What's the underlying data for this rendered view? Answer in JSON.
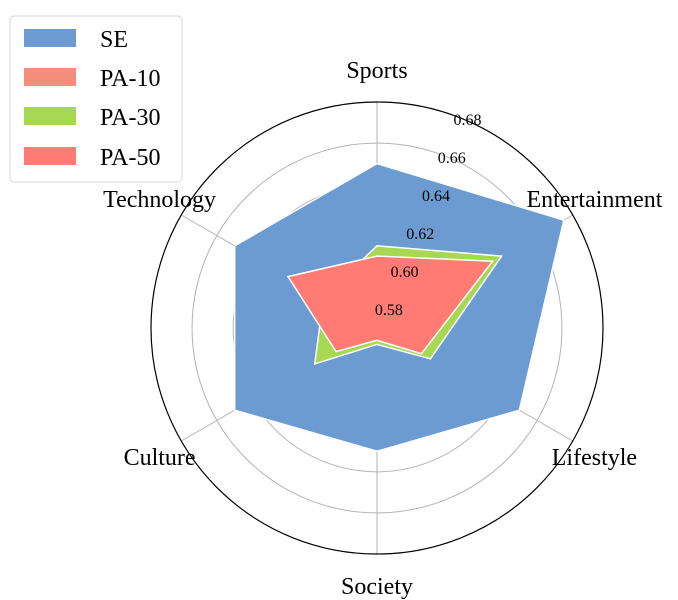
{
  "chart_data": {
    "type": "radar",
    "categories": [
      "Sports",
      "Entertainment",
      "Lifestyle",
      "Society",
      "Culture",
      "Technology"
    ],
    "rlim": [
      0.57,
      0.68
    ],
    "rticks": [
      0.58,
      0.6,
      0.62,
      0.64,
      0.66,
      0.68
    ],
    "rtick_labels": [
      "0.58",
      "0.60",
      "0.62",
      "0.64",
      "0.66",
      "0.68"
    ],
    "series": [
      {
        "name": "SE",
        "color": "#6b9bd1",
        "values": [
          0.65,
          0.675,
          0.65,
          0.63,
          0.65,
          0.65
        ]
      },
      {
        "name": "PA-10",
        "color": "#f28e79",
        "values": [
          0.605,
          0.635,
          0.6,
          0.575,
          0.59,
          0.62
        ]
      },
      {
        "name": "PA-30",
        "color": "#a6d854",
        "values": [
          0.61,
          0.64,
          0.6,
          0.578,
          0.605,
          0.6
        ]
      },
      {
        "name": "PA-50",
        "color": "#ff7b73",
        "values": [
          0.605,
          0.635,
          0.595,
          0.576,
          0.593,
          0.62
        ]
      }
    ],
    "legend_position": "top-left"
  }
}
